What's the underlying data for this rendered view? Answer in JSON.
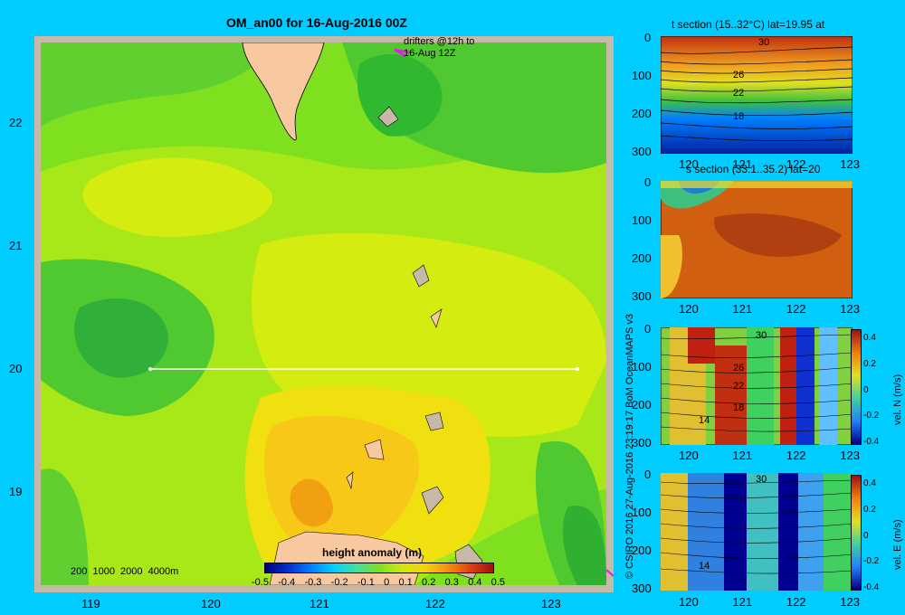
{
  "main_map": {
    "title": "OM_an00 for 16-Aug-2016 00Z",
    "drifters_note_line1": "drifters @12h to",
    "drifters_note_line2": "16-Aug 12Z",
    "lat_ticks": [
      "22",
      "21",
      "20",
      "19"
    ],
    "lon_ticks": [
      "119",
      "120",
      "121",
      "122",
      "123"
    ],
    "depth_scale_text": "200  1000  2000  4000m",
    "colorbar_title": "height anomaly (m)",
    "colorbar_ticks": [
      "-0.5",
      "-0.4",
      "-0.3",
      "-0.2",
      "-0.1",
      "0",
      "0.1",
      "0.2",
      "0.3",
      "0.4",
      "0.5"
    ],
    "section_line": {
      "lat": 20,
      "lon_start": 119.5,
      "lon_end": 123.2
    }
  },
  "panels": [
    {
      "title": "t section (15..32°C) lat=19.95 at",
      "depth_ticks": [
        "0",
        "100",
        "200",
        "300"
      ],
      "lon_ticks": [
        "120",
        "121",
        "122",
        "123"
      ],
      "contour_labels": [
        "30",
        "26",
        "22",
        "18"
      ]
    },
    {
      "title": "s section (33.1..35.2) lat=20",
      "depth_ticks": [
        "0",
        "100",
        "200",
        "300"
      ],
      "lon_ticks": [
        "120",
        "121",
        "122",
        "123"
      ],
      "contour_labels": []
    },
    {
      "title": "",
      "depth_ticks": [
        "0",
        "100",
        "200",
        "300"
      ],
      "lon_ticks": [
        "120",
        "121",
        "122",
        "123"
      ],
      "contour_labels": [
        "30",
        "26",
        "22",
        "18",
        "14"
      ],
      "colorbar_label": "vel. N (m/s)",
      "colorbar_ticks": [
        "0.4",
        "0.2",
        "0",
        "-0.2",
        "-0.4"
      ]
    },
    {
      "title": "",
      "depth_ticks": [
        "0",
        "100",
        "200",
        "300"
      ],
      "lon_ticks": [
        "120",
        "121",
        "122",
        "123"
      ],
      "contour_labels": [
        "30",
        "14"
      ],
      "colorbar_label": "vel. E (m/s)",
      "colorbar_ticks": [
        "0.4",
        "0.2",
        "0",
        "-0.2",
        "-0.4"
      ]
    }
  ],
  "copyright": "© CSIRO 2016   27-Aug-2016 23:19:17 BoM OceanMAPS v3",
  "colors": {
    "background": "#00ccff",
    "land": "#f8c8a0",
    "frame": "#c8b8a8"
  }
}
